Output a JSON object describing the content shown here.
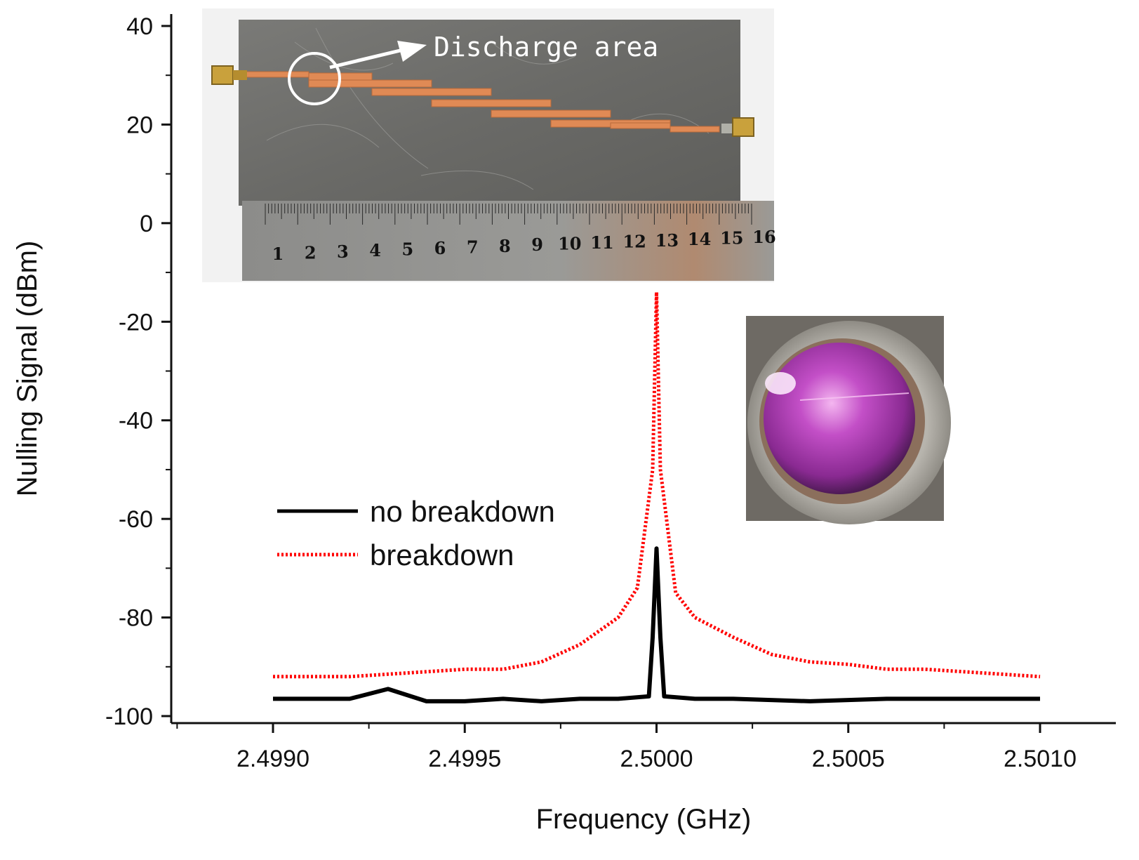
{
  "chart_data": {
    "type": "line",
    "xlabel": "Frequency (GHz)",
    "ylabel": "Nulling Signal (dBm)",
    "xlim": [
      2.4985,
      2.5012
    ],
    "ylim": [
      -105,
      40
    ],
    "xticks": [
      "2.4990",
      "2.4995",
      "2.5000",
      "2.5005",
      "2.5010"
    ],
    "yticks": [
      "40",
      "20",
      "0",
      "-20",
      "-40",
      "-60",
      "-80",
      "-100"
    ],
    "legend_position": "center-left",
    "series": [
      {
        "name": "no breakdown",
        "color": "#000000",
        "style": "solid",
        "x": [
          2.499,
          2.4992,
          2.4993,
          2.4994,
          2.4995,
          2.4996,
          2.4997,
          2.4998,
          2.4999,
          2.49998,
          2.49999,
          2.5,
          2.50001,
          2.50002,
          2.5001,
          2.5002,
          2.5004,
          2.5006,
          2.5008,
          2.501
        ],
        "y": [
          -96.5,
          -96.5,
          -94.5,
          -97,
          -97,
          -96.5,
          -97,
          -96.5,
          -96.5,
          -96,
          -84,
          -66,
          -84,
          -96,
          -96.5,
          -96.5,
          -97,
          -96.5,
          -96.5,
          -96.5
        ]
      },
      {
        "name": "breakdown",
        "color": "#ff0000",
        "style": "dotted",
        "x": [
          2.499,
          2.4991,
          2.4992,
          2.4993,
          2.4994,
          2.4995,
          2.4996,
          2.4997,
          2.4998,
          2.4999,
          2.49995,
          2.49999,
          2.5,
          2.50001,
          2.50005,
          2.5001,
          2.5002,
          2.5003,
          2.5004,
          2.5005,
          2.5006,
          2.5007,
          2.5008,
          2.5009,
          2.501
        ],
        "y": [
          -92,
          -92,
          -92,
          -91.5,
          -91,
          -90.5,
          -90.5,
          -89,
          -85.5,
          -80,
          -74,
          -50,
          -14,
          -50,
          -75,
          -80,
          -84,
          -87.5,
          -89,
          -89.5,
          -90.5,
          -90.5,
          -91,
          -91.5,
          -92
        ]
      }
    ]
  },
  "insets": {
    "pcb_photo_label": "Discharge area",
    "ruler_numbers": [
      "1",
      "2",
      "3",
      "4",
      "5",
      "6",
      "7",
      "8",
      "9",
      "10",
      "11",
      "12",
      "13",
      "14",
      "15",
      "16"
    ]
  },
  "colors": {
    "axis": "#111111",
    "plate": "#6f6f6c",
    "copper": "#e08a55",
    "ruler": "#8a8a88",
    "plasma": "#c04bc4"
  }
}
